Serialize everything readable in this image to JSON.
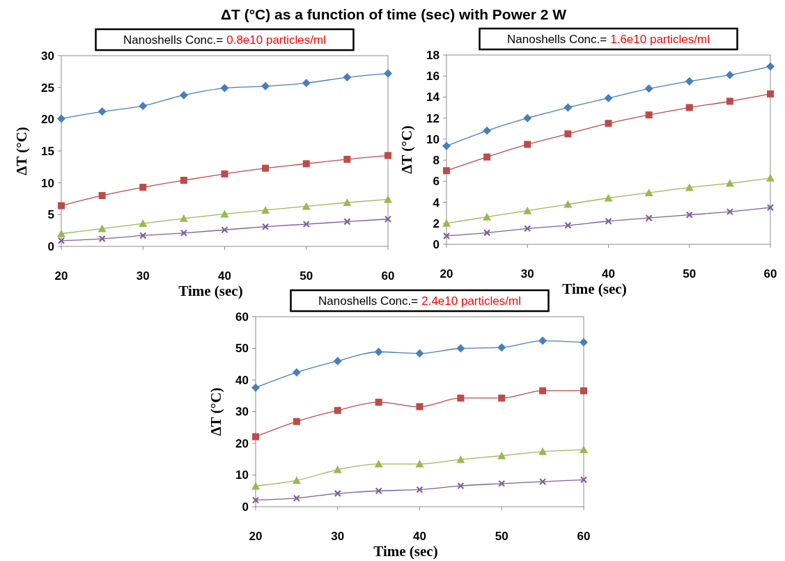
{
  "chart_data": [
    {
      "type": "line",
      "title": "Nanoshells Conc.=",
      "subtitle": "0.8e10 particles/ml",
      "xlabel": "Time (sec)",
      "ylabel": "ΔT (°C)",
      "annotations": [
        "ΔT (°C) as a function of time (sec) with Power 2 W"
      ],
      "x": [
        20,
        25,
        30,
        35,
        40,
        45,
        50,
        55,
        60
      ],
      "xlim": [
        20,
        60
      ],
      "xticks": [
        20,
        30,
        40,
        50,
        60
      ],
      "ylim": [
        0,
        30
      ],
      "yticks": [
        0,
        5,
        10,
        15,
        20,
        25,
        30
      ],
      "grid": false,
      "series": [
        {
          "color": "#4a7ebb",
          "marker": "diamond",
          "values": [
            20.1,
            21.2,
            22.1,
            23.8,
            24.9,
            25.2,
            25.7,
            26.6,
            27.2
          ]
        },
        {
          "color": "#be4b48",
          "marker": "square",
          "values": [
            6.4,
            8.0,
            9.3,
            10.4,
            11.4,
            12.3,
            13.0,
            13.7,
            14.3
          ]
        },
        {
          "color": "#98b954",
          "marker": "triangle",
          "values": [
            2.0,
            2.8,
            3.6,
            4.4,
            5.1,
            5.7,
            6.3,
            6.9,
            7.4
          ]
        },
        {
          "color": "#7d60a0",
          "marker": "cross",
          "values": [
            0.9,
            1.2,
            1.7,
            2.1,
            2.6,
            3.1,
            3.5,
            3.9,
            4.3
          ]
        }
      ]
    },
    {
      "type": "line",
      "title": "Nanoshells Conc.=",
      "subtitle": "1.6e10 particles/ml",
      "xlabel": "Time (sec)",
      "ylabel": "ΔT (°C)",
      "x": [
        20,
        25,
        30,
        35,
        40,
        45,
        50,
        55,
        60
      ],
      "xlim": [
        20,
        60
      ],
      "xticks": [
        20,
        30,
        40,
        50,
        60
      ],
      "ylim": [
        0,
        18
      ],
      "yticks": [
        0,
        2,
        4,
        6,
        8,
        10,
        12,
        14,
        16,
        18
      ],
      "grid": false,
      "series": [
        {
          "color": "#4a7ebb",
          "marker": "diamond",
          "values": [
            9.35,
            10.8,
            12.0,
            13.0,
            13.9,
            14.8,
            15.5,
            16.1,
            16.9
          ]
        },
        {
          "color": "#be4b48",
          "marker": "square",
          "values": [
            7.0,
            8.3,
            9.5,
            10.5,
            11.5,
            12.3,
            13.0,
            13.6,
            14.3
          ]
        },
        {
          "color": "#98b954",
          "marker": "triangle",
          "values": [
            2.0,
            2.6,
            3.2,
            3.8,
            4.4,
            4.9,
            5.4,
            5.8,
            6.3
          ]
        },
        {
          "color": "#7d60a0",
          "marker": "cross",
          "values": [
            0.8,
            1.1,
            1.5,
            1.8,
            2.2,
            2.5,
            2.8,
            3.1,
            3.5
          ]
        }
      ]
    },
    {
      "type": "line",
      "title": "Nanoshells Conc.=",
      "subtitle": "2.4e10 particles/ml",
      "xlabel": "Time (sec)",
      "ylabel": "ΔT (°C)",
      "x": [
        20,
        25,
        30,
        35,
        40,
        45,
        50,
        55,
        60
      ],
      "xlim": [
        20,
        60
      ],
      "xticks": [
        20,
        30,
        40,
        50,
        60
      ],
      "ylim": [
        0,
        60
      ],
      "yticks": [
        0,
        10,
        20,
        30,
        40,
        50,
        60
      ],
      "grid": false,
      "series": [
        {
          "color": "#4a7ebb",
          "marker": "diamond",
          "values": [
            37.6,
            42.4,
            46.0,
            48.9,
            48.4,
            50.0,
            50.3,
            52.4,
            51.9
          ]
        },
        {
          "color": "#be4b48",
          "marker": "square",
          "values": [
            22.1,
            26.9,
            30.4,
            33.0,
            31.6,
            34.3,
            34.3,
            36.6,
            36.6
          ]
        },
        {
          "color": "#98b954",
          "marker": "triangle",
          "values": [
            6.5,
            8.3,
            11.7,
            13.5,
            13.5,
            14.9,
            16.1,
            17.4,
            18.0
          ]
        },
        {
          "color": "#7d60a0",
          "marker": "cross",
          "values": [
            2.1,
            2.7,
            4.2,
            5.0,
            5.4,
            6.6,
            7.3,
            7.9,
            8.5
          ]
        }
      ]
    }
  ]
}
